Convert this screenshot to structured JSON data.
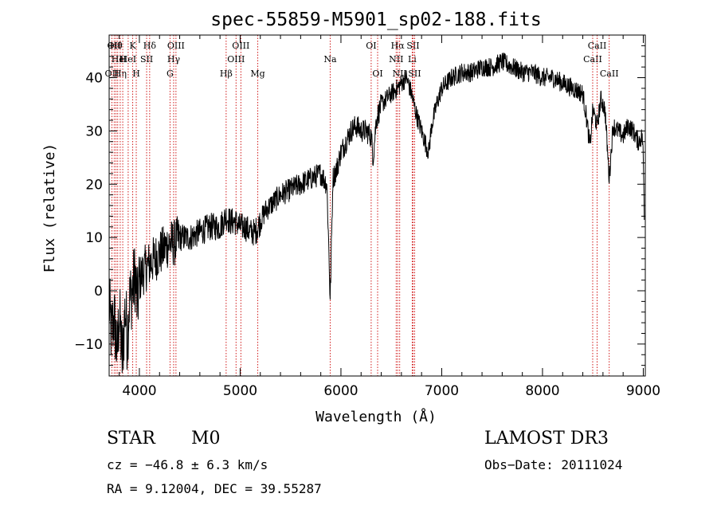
{
  "chart_data": {
    "type": "line",
    "title": "spec-55859-M5901_sp02-188.fits",
    "xlabel": "Wavelength (Å)",
    "ylabel": "Flux (relative)",
    "xlim": [
      3700,
      9020
    ],
    "ylim": [
      -16,
      48
    ],
    "xticks": [
      4000,
      5000,
      6000,
      7000,
      8000,
      9000
    ],
    "yticks": [
      -10,
      0,
      10,
      20,
      30,
      40
    ],
    "grid": false,
    "line_color": "#000000",
    "marker_color": "#cc0000",
    "series": [
      {
        "name": "flux",
        "anchors": [
          [
            3700,
            -2
          ],
          [
            3720,
            -8
          ],
          [
            3750,
            -5
          ],
          [
            3780,
            -12
          ],
          [
            3800,
            -4
          ],
          [
            3830,
            -13
          ],
          [
            3860,
            -3
          ],
          [
            3880,
            -9
          ],
          [
            3900,
            -2
          ],
          [
            3930,
            0
          ],
          [
            3960,
            3
          ],
          [
            3980,
            -3
          ],
          [
            4000,
            2
          ],
          [
            4050,
            4
          ],
          [
            4100,
            5
          ],
          [
            4150,
            6
          ],
          [
            4200,
            7
          ],
          [
            4250,
            8
          ],
          [
            4300,
            9
          ],
          [
            4350,
            9
          ],
          [
            4400,
            10
          ],
          [
            4500,
            10
          ],
          [
            4600,
            11
          ],
          [
            4700,
            12
          ],
          [
            4800,
            12
          ],
          [
            4860,
            14
          ],
          [
            4900,
            13
          ],
          [
            4950,
            13
          ],
          [
            5000,
            12
          ],
          [
            5050,
            12
          ],
          [
            5100,
            11
          ],
          [
            5150,
            11
          ],
          [
            5200,
            13
          ],
          [
            5250,
            15
          ],
          [
            5300,
            16
          ],
          [
            5400,
            18
          ],
          [
            5500,
            19
          ],
          [
            5600,
            20
          ],
          [
            5700,
            21
          ],
          [
            5800,
            22
          ],
          [
            5860,
            20
          ],
          [
            5880,
            8
          ],
          [
            5893,
            -2
          ],
          [
            5905,
            8
          ],
          [
            5920,
            21
          ],
          [
            5960,
            23
          ],
          [
            6000,
            26
          ],
          [
            6050,
            28
          ],
          [
            6100,
            30
          ],
          [
            6150,
            31
          ],
          [
            6200,
            30
          ],
          [
            6250,
            30
          ],
          [
            6300,
            29
          ],
          [
            6320,
            25
          ],
          [
            6350,
            32
          ],
          [
            6400,
            35
          ],
          [
            6450,
            36
          ],
          [
            6500,
            37
          ],
          [
            6560,
            38
          ],
          [
            6600,
            39
          ],
          [
            6650,
            40
          ],
          [
            6700,
            37
          ],
          [
            6750,
            33
          ],
          [
            6800,
            30
          ],
          [
            6850,
            27
          ],
          [
            6870,
            26
          ],
          [
            6900,
            31
          ],
          [
            6950,
            35
          ],
          [
            7000,
            38
          ],
          [
            7100,
            40
          ],
          [
            7200,
            41
          ],
          [
            7300,
            41
          ],
          [
            7400,
            42
          ],
          [
            7500,
            42
          ],
          [
            7600,
            43
          ],
          [
            7700,
            42
          ],
          [
            7800,
            41
          ],
          [
            7900,
            41
          ],
          [
            8000,
            40
          ],
          [
            8100,
            40
          ],
          [
            8200,
            39
          ],
          [
            8300,
            38
          ],
          [
            8400,
            37
          ],
          [
            8440,
            32
          ],
          [
            8470,
            27
          ],
          [
            8500,
            34
          ],
          [
            8542,
            31
          ],
          [
            8580,
            36
          ],
          [
            8620,
            34
          ],
          [
            8662,
            21
          ],
          [
            8700,
            31
          ],
          [
            8750,
            30
          ],
          [
            8800,
            29
          ],
          [
            8850,
            31
          ],
          [
            8900,
            30
          ],
          [
            8950,
            28
          ],
          [
            8990,
            29
          ],
          [
            9000,
            25
          ],
          [
            9010,
            14
          ]
        ]
      }
    ],
    "line_markers": [
      {
        "wave": 3727,
        "label": "OII",
        "row": 2
      },
      {
        "wave": 3750,
        "label": "OII",
        "row": 0
      },
      {
        "wave": 3768,
        "label": "Hθ",
        "row": 0
      },
      {
        "wave": 3785,
        "label": "He",
        "row": 1
      },
      {
        "wave": 3810,
        "label": "Hη",
        "row": 2
      },
      {
        "wave": 3835,
        "label": "H",
        "row": 1
      },
      {
        "wave": 3889,
        "label": "HeI",
        "row": 1
      },
      {
        "wave": 3934,
        "label": "K",
        "row": 0
      },
      {
        "wave": 3969,
        "label": "H",
        "row": 2
      },
      {
        "wave": 4072,
        "label": "SII",
        "row": 1
      },
      {
        "wave": 4102,
        "label": "Hδ",
        "row": 0
      },
      {
        "wave": 4304,
        "label": "G",
        "row": 2
      },
      {
        "wave": 4340,
        "label": "Hγ",
        "row": 1
      },
      {
        "wave": 4363,
        "label": "OIII",
        "row": 0
      },
      {
        "wave": 4861,
        "label": "Hβ",
        "row": 2
      },
      {
        "wave": 4959,
        "label": "OIII",
        "row": 1
      },
      {
        "wave": 5007,
        "label": "OIII",
        "row": 0
      },
      {
        "wave": 5175,
        "label": "Mg",
        "row": 2
      },
      {
        "wave": 5893,
        "label": "Na",
        "row": 1
      },
      {
        "wave": 6300,
        "label": "OI",
        "row": 0
      },
      {
        "wave": 6364,
        "label": "OI",
        "row": 2
      },
      {
        "wave": 6548,
        "label": "NII",
        "row": 1
      },
      {
        "wave": 6563,
        "label": "Hα",
        "row": 0
      },
      {
        "wave": 6583,
        "label": "NII",
        "row": 2
      },
      {
        "wave": 6707,
        "label": "Li",
        "row": 1
      },
      {
        "wave": 6716,
        "label": "SII",
        "row": 0
      },
      {
        "wave": 6731,
        "label": "SII",
        "row": 2
      },
      {
        "wave": 8498,
        "label": "CaII",
        "row": 1
      },
      {
        "wave": 8542,
        "label": "CaII",
        "row": 0
      },
      {
        "wave": 8662,
        "label": "CaII",
        "row": 2
      }
    ]
  },
  "info": {
    "object_class": "STAR",
    "subclass": "M0",
    "survey": "LAMOST DR3",
    "cz": "cz = −46.8 ± 6.3 km/s",
    "obs_date": "Obs−Date: 20111024",
    "coords": "RA =   9.12004, DEC =  39.55287"
  }
}
